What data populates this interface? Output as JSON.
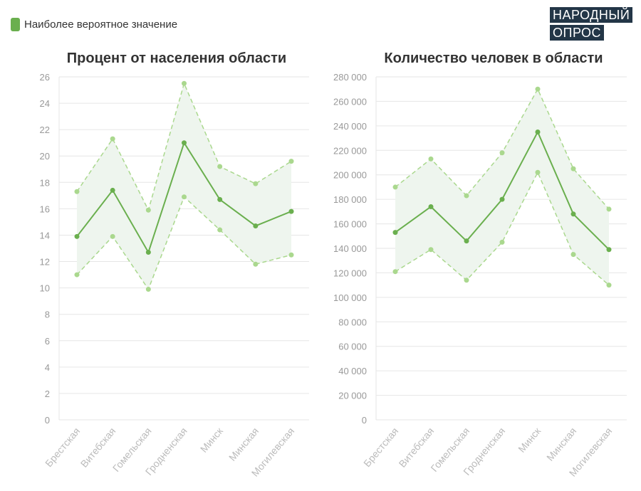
{
  "legend": {
    "label": "Наиболее вероятное значение",
    "color": "#6aaf4e"
  },
  "logo": {
    "line1": "НАРОДНЫЙ",
    "line2": "ОПРОС"
  },
  "colors": {
    "main_line": "#6aaf4e",
    "bound_line": "#aad88e",
    "band_fill": "#eef5ee",
    "grid": "#e6e6e6",
    "tick_text": "#999999"
  },
  "chart_data": [
    {
      "type": "line",
      "title": "Процент от населения области",
      "categories": [
        "Брестская",
        "Витебская",
        "Гомельская",
        "Гродненская",
        "Минск",
        "Минская",
        "Могилевская"
      ],
      "series": [
        {
          "name": "Наиболее вероятное значение",
          "values": [
            13.9,
            17.4,
            12.7,
            21.0,
            16.7,
            14.7,
            15.8
          ]
        },
        {
          "values": [
            17.3,
            21.3,
            15.9,
            25.5,
            19.2,
            17.9,
            19.6
          ]
        },
        {
          "values": [
            11.0,
            13.9,
            9.9,
            16.9,
            14.4,
            11.8,
            12.5
          ]
        }
      ],
      "ylim": [
        0,
        26
      ],
      "yticks": [
        "0",
        "2",
        "4",
        "6",
        "8",
        "10",
        "12",
        "14",
        "16",
        "18",
        "20",
        "22",
        "24",
        "26"
      ],
      "grid": true
    },
    {
      "type": "line",
      "title": "Количество человек в области",
      "categories": [
        "Брестская",
        "Витебская",
        "Гомельская",
        "Гродненская",
        "Минск",
        "Минская",
        "Могилевская"
      ],
      "series": [
        {
          "name": "Наиболее вероятное значение",
          "values": [
            153000,
            174000,
            146000,
            180000,
            235000,
            168000,
            139000
          ]
        },
        {
          "values": [
            190000,
            213000,
            183000,
            218000,
            270000,
            205000,
            172000
          ]
        },
        {
          "values": [
            121000,
            139000,
            114000,
            145000,
            202000,
            135000,
            110000
          ]
        }
      ],
      "ylim": [
        0,
        280000
      ],
      "yticks": [
        "0",
        "20 000",
        "40 000",
        "60 000",
        "80 000",
        "100 000",
        "120 000",
        "140 000",
        "160 000",
        "180 000",
        "200 000",
        "220 000",
        "240 000",
        "260 000",
        "280 000"
      ],
      "grid": true
    }
  ]
}
